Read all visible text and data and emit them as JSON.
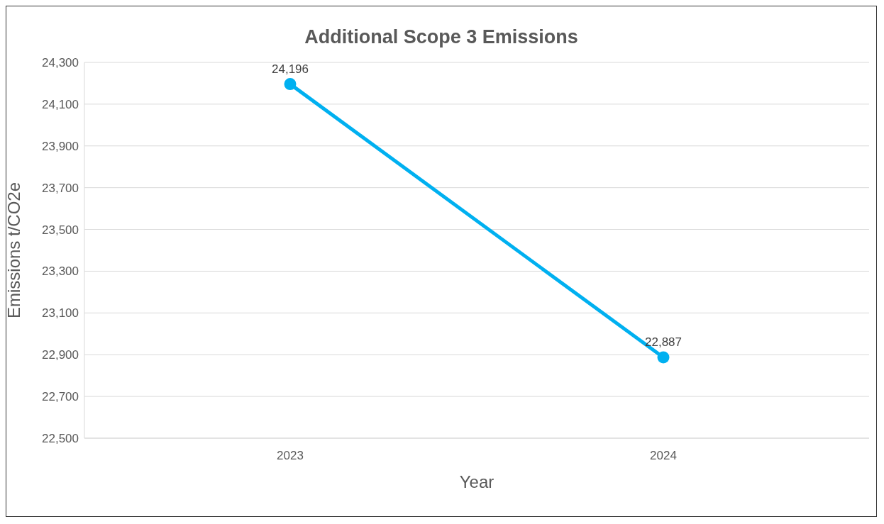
{
  "chart_data": {
    "type": "line",
    "title": "Additional Scope 3 Emissions",
    "xlabel": "Year",
    "ylabel": "Emissions t/CO2e",
    "categories": [
      "2023",
      "2024"
    ],
    "series": [
      {
        "color": "#00b0f0",
        "values": [
          24196,
          22887
        ],
        "value_labels": [
          "24,196",
          "22,887"
        ]
      }
    ],
    "ylim": [
      22500,
      24300
    ],
    "yticks": [
      {
        "value": 22500,
        "label": "22,500"
      },
      {
        "value": 22700,
        "label": "22,700"
      },
      {
        "value": 22900,
        "label": "22,900"
      },
      {
        "value": 23100,
        "label": "23,100"
      },
      {
        "value": 23300,
        "label": "23,300"
      },
      {
        "value": 23500,
        "label": "23,500"
      },
      {
        "value": 23700,
        "label": "23,700"
      },
      {
        "value": 23900,
        "label": "23,900"
      },
      {
        "value": 24100,
        "label": "24,100"
      },
      {
        "value": 24300,
        "label": "24,300"
      }
    ],
    "grid": "y",
    "marker": "circle",
    "line_style": "solid"
  }
}
